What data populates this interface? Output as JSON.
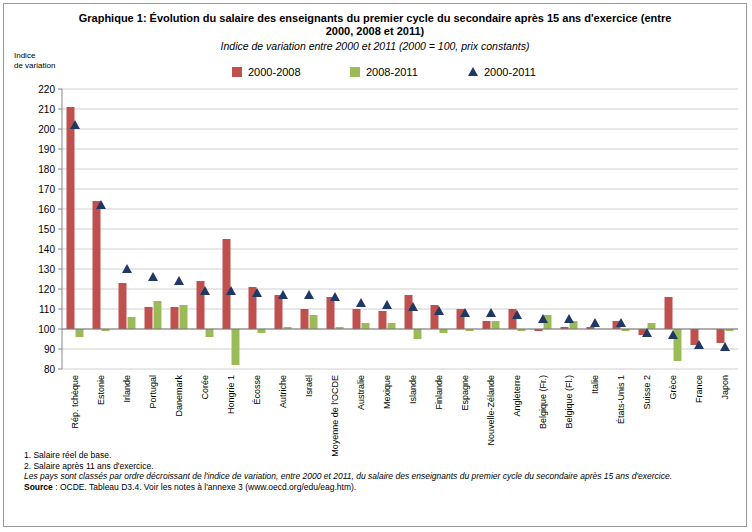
{
  "chart_data": {
    "type": "bar",
    "title": "Graphique 1: Évolution du salaire des enseignants du premier cycle du secondaire après 15 ans d'exercice (entre 2000,  2008 et 2011)",
    "subtitle": "Indice de variation entre 2000 et 2011 (2000 = 100, prix constants)",
    "y_label": "Indice de variation",
    "categories": [
      "Rép. tchèque",
      "Estonie",
      "Irlande",
      "Portugal",
      "Danemark",
      "Corée",
      "Hongrie 1",
      "Écosse",
      "Autriche",
      "Israël",
      "Moyenne de l'OCDE",
      "Australie",
      "Mexique",
      "Islande",
      "Finlande",
      "Espagne",
      "Nouvelle-Zélande",
      "Angleterre",
      "Belgique (Fr.)",
      "Belgique (Fl.)",
      "Italie",
      "États-Unis 1",
      "Suisse 2",
      "Grèce",
      "France",
      "Japon"
    ],
    "series": [
      {
        "name": "2000-2008",
        "type": "bar",
        "color": "#c0504d",
        "values": [
          211,
          164,
          123,
          111,
          111,
          124,
          145,
          121,
          117,
          110,
          116,
          110,
          109,
          117,
          112,
          110,
          104,
          110,
          99,
          101,
          101,
          104,
          97,
          116,
          92,
          93
        ]
      },
      {
        "name": "2008-2011",
        "type": "bar",
        "color": "#9bbb59",
        "values": [
          96,
          99,
          106,
          114,
          112,
          96,
          82,
          98,
          101,
          107,
          101,
          103,
          103,
          95,
          98,
          99,
          104,
          99,
          107,
          104,
          100,
          99,
          103,
          84,
          100,
          99
        ]
      },
      {
        "name": "2000-2011",
        "type": "scatter",
        "marker": "triangle",
        "color": "#1f3864",
        "values": [
          202,
          162,
          130,
          126,
          124,
          119,
          119,
          118,
          117,
          117,
          116,
          113,
          112,
          111,
          109,
          108,
          108,
          107,
          105,
          105,
          103,
          103,
          98,
          97,
          92,
          91
        ]
      }
    ],
    "baseline": 100,
    "ylim": [
      80,
      220
    ],
    "yticks": [
      80,
      90,
      100,
      110,
      120,
      130,
      140,
      150,
      160,
      170,
      180,
      190,
      200,
      210,
      220
    ],
    "grid": true,
    "legend": "top",
    "notes": [
      "1. Salaire réel de base.",
      "2. Salaire après 11 ans d'exercice."
    ],
    "note_italic": "Les pays sont classés par ordre décroissant de l'indice de variation, entre 2000 et 2011, du salaire des enseignants du premier cycle du secondaire après 15 ans d'exercice.",
    "source": {
      "label": "Source",
      "text": " : OCDE. Tableau D3.4. Voir les notes à l'annexe 3  (www.oecd.org/edu/eag.htm)."
    }
  }
}
